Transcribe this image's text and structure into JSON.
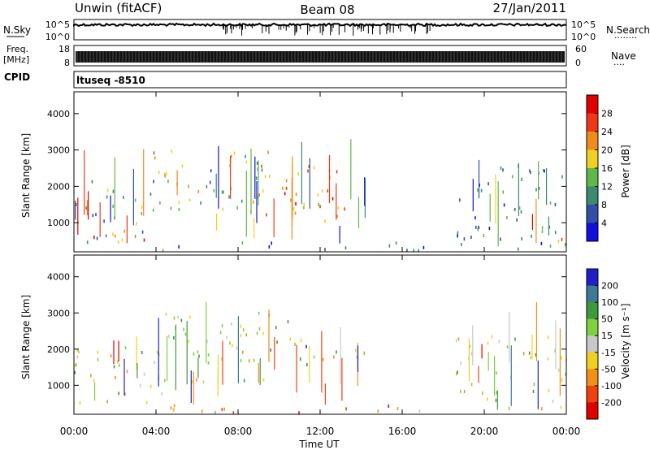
{
  "header": {
    "station": "Unwin (fitACF)",
    "beam": "Beam 08",
    "date": "27/Jan/2011"
  },
  "strip_labels": {
    "nsky": "N.Sky",
    "nsearch": "N.Search",
    "nsearch_dots": "........",
    "freq": "Freq.",
    "freq_unit": "[MHz]",
    "nave": "Nave",
    "nave_dots": "....",
    "cpid": "CPID",
    "cpid_value": "ltuseq -8510"
  },
  "strip_ticks": {
    "nsky_left": [
      "10^5",
      "10^0"
    ],
    "nsky_right": [
      "10^5",
      "10^0"
    ],
    "freq_left": [
      "18",
      "8"
    ],
    "freq_right": [
      "60",
      "0"
    ]
  },
  "chart_data": [
    {
      "type": "heatmap",
      "panel": "power",
      "ylabel": "Slant Range [km]",
      "ylim": [
        200,
        4600
      ],
      "y_ticks": [
        "1000",
        "2000",
        "3000",
        "4000"
      ],
      "x_ticks": [
        "00:00",
        "04:00",
        "08:00",
        "12:00",
        "16:00",
        "20:00",
        "00:00"
      ],
      "colorbar": {
        "label": "Power [dB]",
        "ticks": [
          "4",
          "8",
          "12",
          "16",
          "20",
          "24",
          "28"
        ],
        "colors": [
          "#1010e0",
          "#3050a8",
          "#3d8a72",
          "#5fb84a",
          "#f0d024",
          "#f08c1c",
          "#f03818",
          "#e00000"
        ]
      },
      "regions": [
        {
          "t0": 0.0,
          "t1": 4.0,
          "r0": 450,
          "r1": 2200,
          "level": 0.35
        },
        {
          "t0": 0.5,
          "t1": 3.8,
          "r0": 500,
          "r1": 800,
          "level": 0.75
        },
        {
          "t0": 3.8,
          "t1": 9.5,
          "r0": 1000,
          "r1": 3000,
          "level": 0.45
        },
        {
          "t0": 9.0,
          "t1": 13.5,
          "r0": 1000,
          "r1": 2600,
          "level": 0.7
        },
        {
          "t0": 10.0,
          "t1": 11.5,
          "r0": 1500,
          "r1": 2000,
          "level": 0.85
        },
        {
          "t0": 11.8,
          "t1": 13.0,
          "r0": 1400,
          "r1": 1750,
          "level": 0.6
        },
        {
          "t0": 18.6,
          "t1": 24.0,
          "r0": 500,
          "r1": 2600,
          "level": 0.3
        },
        {
          "t0": 23.0,
          "t1": 24.0,
          "r0": 400,
          "r1": 900,
          "level": 0.7
        },
        {
          "t0": 4.0,
          "t1": 24.0,
          "r0": 220,
          "r1": 450,
          "level": 0.2
        }
      ]
    },
    {
      "type": "heatmap",
      "panel": "velocity",
      "xlabel": "Time UT",
      "ylabel": "Slant Range [km]",
      "ylim": [
        200,
        4600
      ],
      "y_ticks": [
        "1000",
        "2000",
        "3000",
        "4000"
      ],
      "x_ticks": [
        "00:00",
        "04:00",
        "08:00",
        "12:00",
        "16:00",
        "20:00",
        "00:00"
      ],
      "colorbar": {
        "label": "Velocity [m s⁻¹]",
        "ticks": [
          "200",
          "100",
          "50",
          "15",
          "-15",
          "-50",
          "-100",
          "-200"
        ],
        "colors": [
          "#2020c8",
          "#3c7a98",
          "#3d9a3a",
          "#80d040",
          "#c8c8c8",
          "#f0d020",
          "#f09018",
          "#f04010",
          "#e00000"
        ]
      },
      "regions": [
        {
          "t0": 0.0,
          "t1": 4.5,
          "r0": 450,
          "r1": 2200,
          "level": 0.5
        },
        {
          "t0": 4.0,
          "t1": 9.5,
          "r0": 900,
          "r1": 3000,
          "level": 0.5
        },
        {
          "t0": 9.0,
          "t1": 11.5,
          "r0": 1800,
          "r1": 2800,
          "level": 0.9
        },
        {
          "t0": 11.0,
          "t1": 13.5,
          "r0": 1450,
          "r1": 1750,
          "level": 0.95
        },
        {
          "t0": 11.5,
          "t1": 14.5,
          "r0": 1700,
          "r1": 2300,
          "level": 0.5
        },
        {
          "t0": 18.6,
          "t1": 24.0,
          "r0": 500,
          "r1": 2400,
          "level": 0.5
        },
        {
          "t0": 4.0,
          "t1": 24.0,
          "r0": 220,
          "r1": 450,
          "level": 0.3
        }
      ]
    }
  ]
}
